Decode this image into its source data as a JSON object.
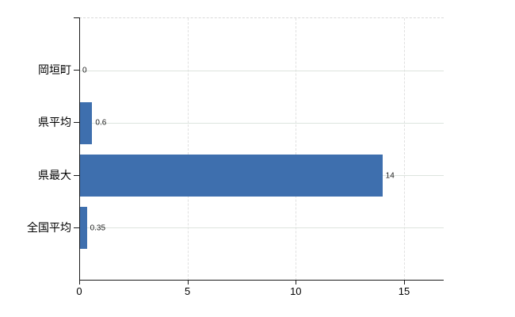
{
  "chart": {
    "background": "#ffffff",
    "bar_color": "#3e6fae",
    "axis_color": "#1a1a1a",
    "h_grid_color": "#dde4de",
    "v_grid_color": "#e0e0e0",
    "top_border_color": "#d9d9d9",
    "category_label_color": "#000000",
    "value_label_color": "#1f1f1f"
  },
  "chart_data": {
    "type": "bar",
    "orientation": "horizontal",
    "title": "",
    "xlabel": "",
    "ylabel": "",
    "categories": [
      "岡垣町",
      "県平均",
      "県最大",
      "全国平均"
    ],
    "values": [
      0,
      0.6,
      14,
      0.35
    ],
    "value_labels": [
      "0",
      "0.6",
      "14",
      "0.35"
    ],
    "x_ticks": [
      0,
      5,
      10,
      15
    ],
    "x_tick_labels": [
      "0",
      "5",
      "10",
      "15"
    ],
    "xlim": [
      0,
      16.83
    ],
    "grid": true,
    "legend": false
  }
}
